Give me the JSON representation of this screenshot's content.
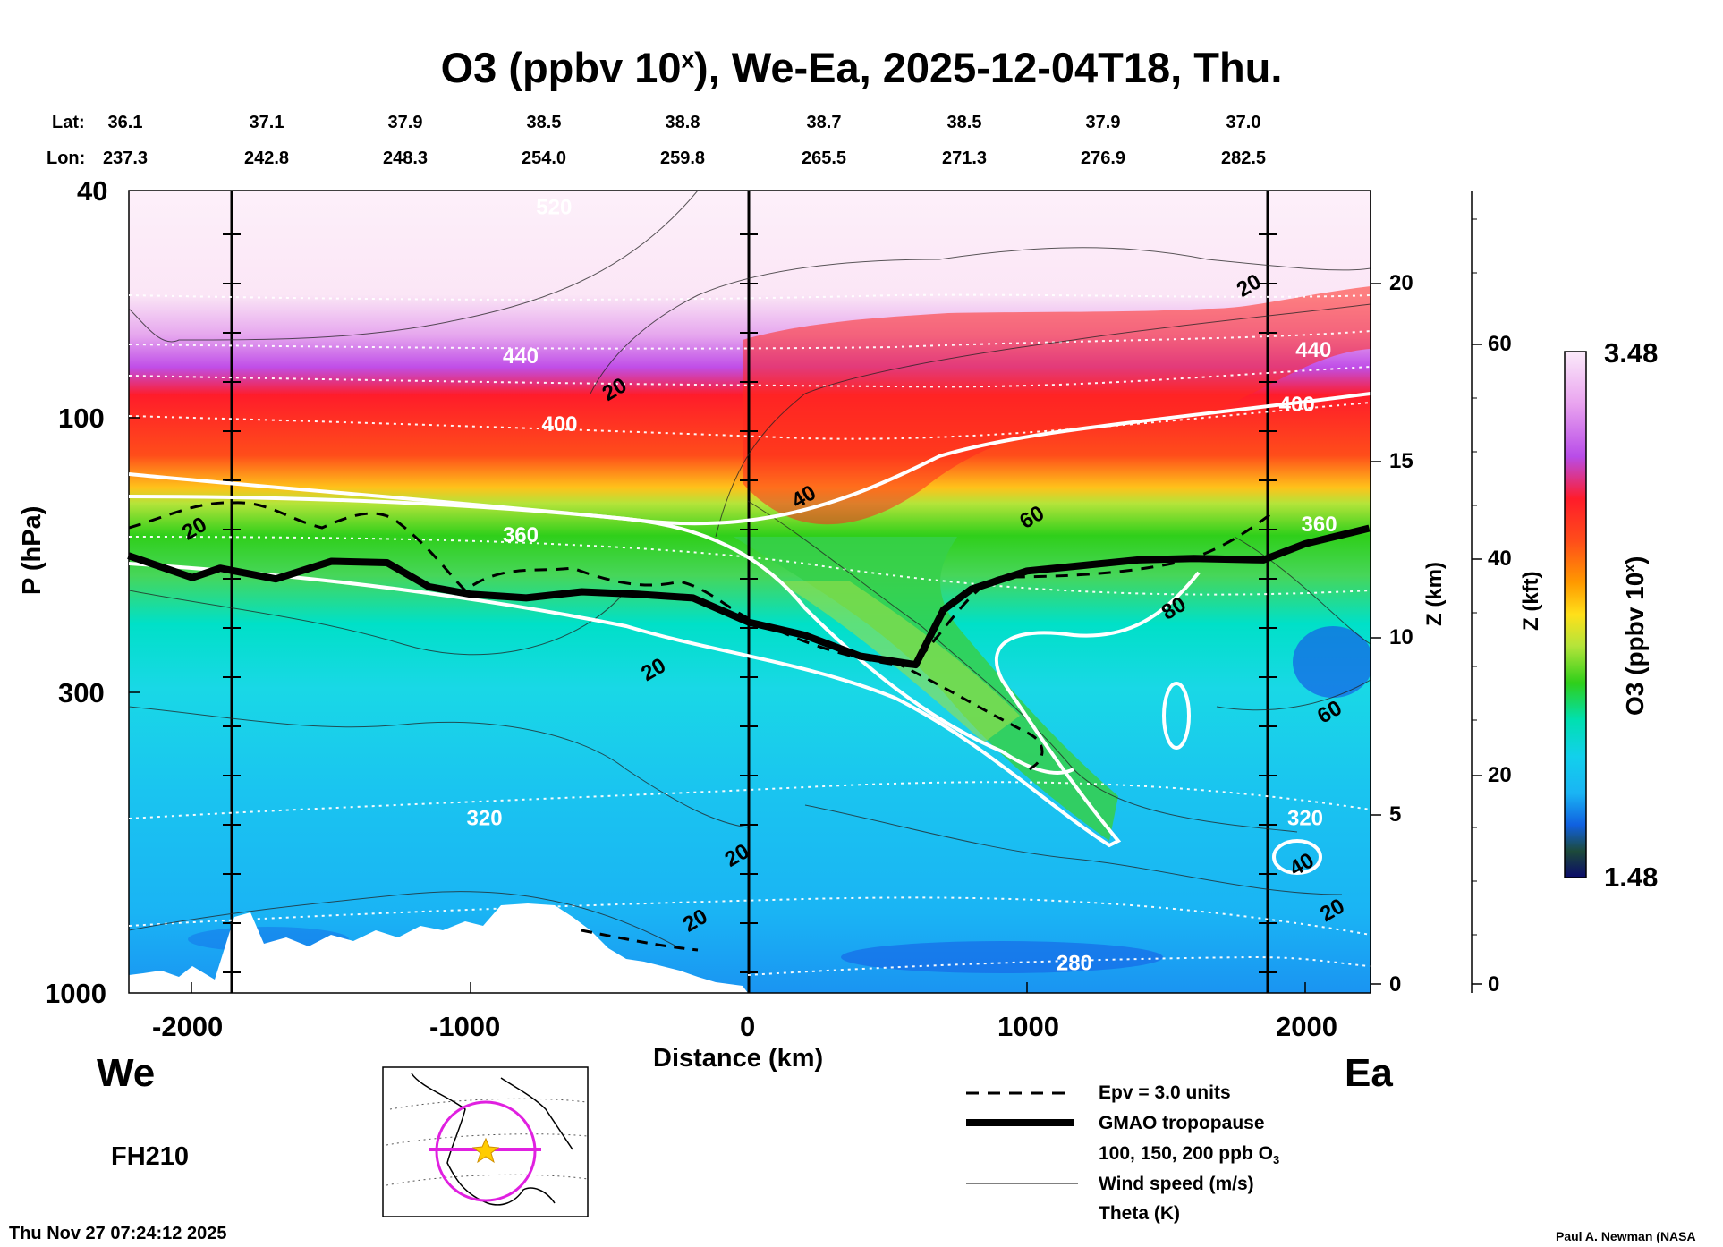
{
  "title": {
    "main": "O3 (ppbv 10",
    "sup": "x",
    "rest": "), We-Ea, 2025-12-04T18, Thu."
  },
  "header": {
    "lat_label": "Lat:",
    "lon_label": "Lon:",
    "lat": [
      "36.1",
      "37.1",
      "37.9",
      "38.5",
      "38.8",
      "38.7",
      "38.5",
      "37.9",
      "37.0"
    ],
    "lon": [
      "237.3",
      "242.8",
      "248.3",
      "254.0",
      "259.8",
      "265.5",
      "271.3",
      "276.9",
      "282.5"
    ]
  },
  "axes": {
    "y_left_label": "P (hPa)",
    "y_left_ticks": [
      "40",
      "100",
      "300",
      "1000"
    ],
    "x_label": "Distance (km)",
    "x_ticks": [
      "-2000",
      "-1000",
      "0",
      "1000",
      "2000"
    ],
    "z_km_label": "Z (km)",
    "z_km_ticks": [
      "20",
      "15",
      "10",
      "5",
      "0"
    ],
    "z_kft_label": "Z (kft)",
    "z_kft_ticks": [
      "60",
      "40",
      "20",
      "0"
    ]
  },
  "chart_data": {
    "type": "heatmap",
    "title": "O3 (ppbv 10^x), We-Ea, 2025-12-04T18, Thu.",
    "xlabel": "Distance (km)",
    "ylabel": "P (hPa)",
    "xlim": [
      -2230,
      2230
    ],
    "ylim": [
      1000,
      40
    ],
    "y_scale": "log",
    "x_ticks": [
      -2000,
      -1000,
      0,
      1000,
      2000
    ],
    "y_ticks": [
      40,
      100,
      300,
      1000
    ],
    "colorbar": {
      "label": "O3 (ppbv 10^x)",
      "min": 1.48,
      "max": 3.48
    },
    "tropopause_hpa": [
      [
        -2230,
        173
      ],
      [
        -2000,
        189
      ],
      [
        -1900,
        182
      ],
      [
        -1700,
        190
      ],
      [
        -1500,
        177
      ],
      [
        -1300,
        178
      ],
      [
        -1150,
        196
      ],
      [
        -1000,
        202
      ],
      [
        -800,
        205
      ],
      [
        -600,
        200
      ],
      [
        -400,
        202
      ],
      [
        -200,
        205
      ],
      [
        0,
        226
      ],
      [
        200,
        238
      ],
      [
        400,
        259
      ],
      [
        600,
        268
      ],
      [
        700,
        215
      ],
      [
        800,
        198
      ],
      [
        1000,
        184
      ],
      [
        1200,
        180
      ],
      [
        1400,
        176
      ],
      [
        1600,
        175
      ],
      [
        1850,
        176
      ],
      [
        2000,
        165
      ],
      [
        2230,
        155
      ]
    ],
    "theta_K_labels": [
      {
        "value": 520,
        "x": -700,
        "p": 44
      },
      {
        "value": 440,
        "x": -820,
        "p": 80
      },
      {
        "value": 440,
        "x": 2030,
        "p": 78
      },
      {
        "value": 400,
        "x": -680,
        "p": 105
      },
      {
        "value": 400,
        "x": 1970,
        "p": 97
      },
      {
        "value": 360,
        "x": -820,
        "p": 164
      },
      {
        "value": 360,
        "x": 2050,
        "p": 157
      },
      {
        "value": 320,
        "x": -950,
        "p": 510
      },
      {
        "value": 320,
        "x": 2000,
        "p": 510
      },
      {
        "value": 280,
        "x": 1170,
        "p": 912
      }
    ],
    "wind_speed_labels": [
      {
        "value": 20,
        "x": -1980,
        "p": 159
      },
      {
        "value": 20,
        "x": -470,
        "p": 91
      },
      {
        "value": 20,
        "x": 1810,
        "p": 60
      },
      {
        "value": 40,
        "x": 210,
        "p": 140
      },
      {
        "value": 60,
        "x": 1030,
        "p": 152
      },
      {
        "value": 80,
        "x": 1540,
        "p": 219
      },
      {
        "value": 20,
        "x": -330,
        "p": 280
      },
      {
        "value": 20,
        "x": -30,
        "p": 590
      },
      {
        "value": 20,
        "x": -180,
        "p": 766
      },
      {
        "value": 60,
        "x": 2100,
        "p": 332
      },
      {
        "value": 40,
        "x": 2000,
        "p": 612
      },
      {
        "value": 20,
        "x": 2110,
        "p": 735
      }
    ]
  },
  "colorbar": {
    "max": "3.48",
    "min": "1.48",
    "label_main": "O3 (ppbv 10",
    "label_sup": "x",
    "label_end": ")"
  },
  "direction": {
    "west": "We",
    "east": "Ea"
  },
  "forecast_hour": "FH210",
  "timestamp": "Thu Nov 27 07:24:12 2025",
  "credit": "Paul A. Newman (NASA",
  "legend": {
    "items": [
      {
        "label": "Epv = 3.0 units",
        "style": "dashed"
      },
      {
        "label": "GMAO tropopause",
        "style": "thick"
      },
      {
        "label": "100, 150, 200 ppb O",
        "sub": "3",
        "style": "white"
      },
      {
        "label": "Wind speed (m/s)",
        "style": "thin"
      },
      {
        "label": "Theta (K)",
        "style": "dotted"
      }
    ]
  },
  "colors": {
    "strat_top": "#fdf0fa",
    "violet": "#c04ee8",
    "red": "#ff1c2a",
    "orange": "#ff9a00",
    "green": "#2fcf1a",
    "cyan": "#00e0d8",
    "blue": "#1ab4f4",
    "legend_bg": "#e7a1ea"
  }
}
